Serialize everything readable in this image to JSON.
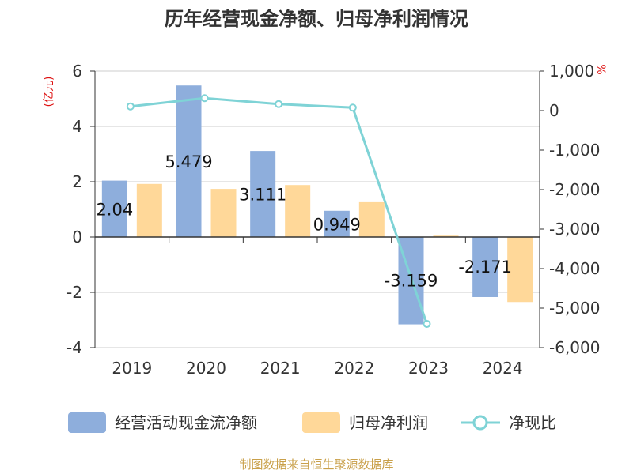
{
  "chart_data": {
    "type": "bar",
    "title": "历年经营现金净额、归母净利润情况",
    "categories": [
      "2019",
      "2020",
      "2021",
      "2022",
      "2023",
      "2024"
    ],
    "left_axis": {
      "unit_label": "(亿元)",
      "ylim": [
        -4,
        6
      ],
      "ticks": [
        "-4",
        "-2",
        "0",
        "2",
        "4",
        "6"
      ]
    },
    "right_axis": {
      "unit_label": "%",
      "ylim": [
        -6000,
        1000
      ],
      "ticks": [
        "-6,000",
        "-5,000",
        "-4,000",
        "-3,000",
        "-2,000",
        "-1,000",
        "0",
        "1,000"
      ]
    },
    "series": [
      {
        "name": "经营活动现金流净额",
        "kind": "bar",
        "axis": "left",
        "color": "#8eaedc",
        "values": [
          2.04,
          5.479,
          3.111,
          0.949,
          -3.159,
          -2.171
        ],
        "labels": [
          "2.04",
          "5.479",
          "3.111",
          "0.949",
          "-3.159",
          "-2.171"
        ]
      },
      {
        "name": "归母净利润",
        "kind": "bar",
        "axis": "left",
        "color": "#ffd899",
        "values": [
          1.92,
          1.74,
          1.88,
          1.26,
          0.05,
          -2.35
        ]
      },
      {
        "name": "净现比",
        "kind": "line",
        "axis": "right",
        "color": "#7fd3d6",
        "values": [
          106,
          315,
          165,
          75,
          -5400,
          null
        ]
      }
    ],
    "grid": true,
    "legend_position": "bottom"
  },
  "footer": {
    "source": "制图数据来自恒生聚源数据库"
  },
  "colors": {
    "title": "#333333",
    "axis_text": "#333333",
    "unit": "#dd1111",
    "footer": "#c9a04a",
    "grid": "#cccccc"
  }
}
